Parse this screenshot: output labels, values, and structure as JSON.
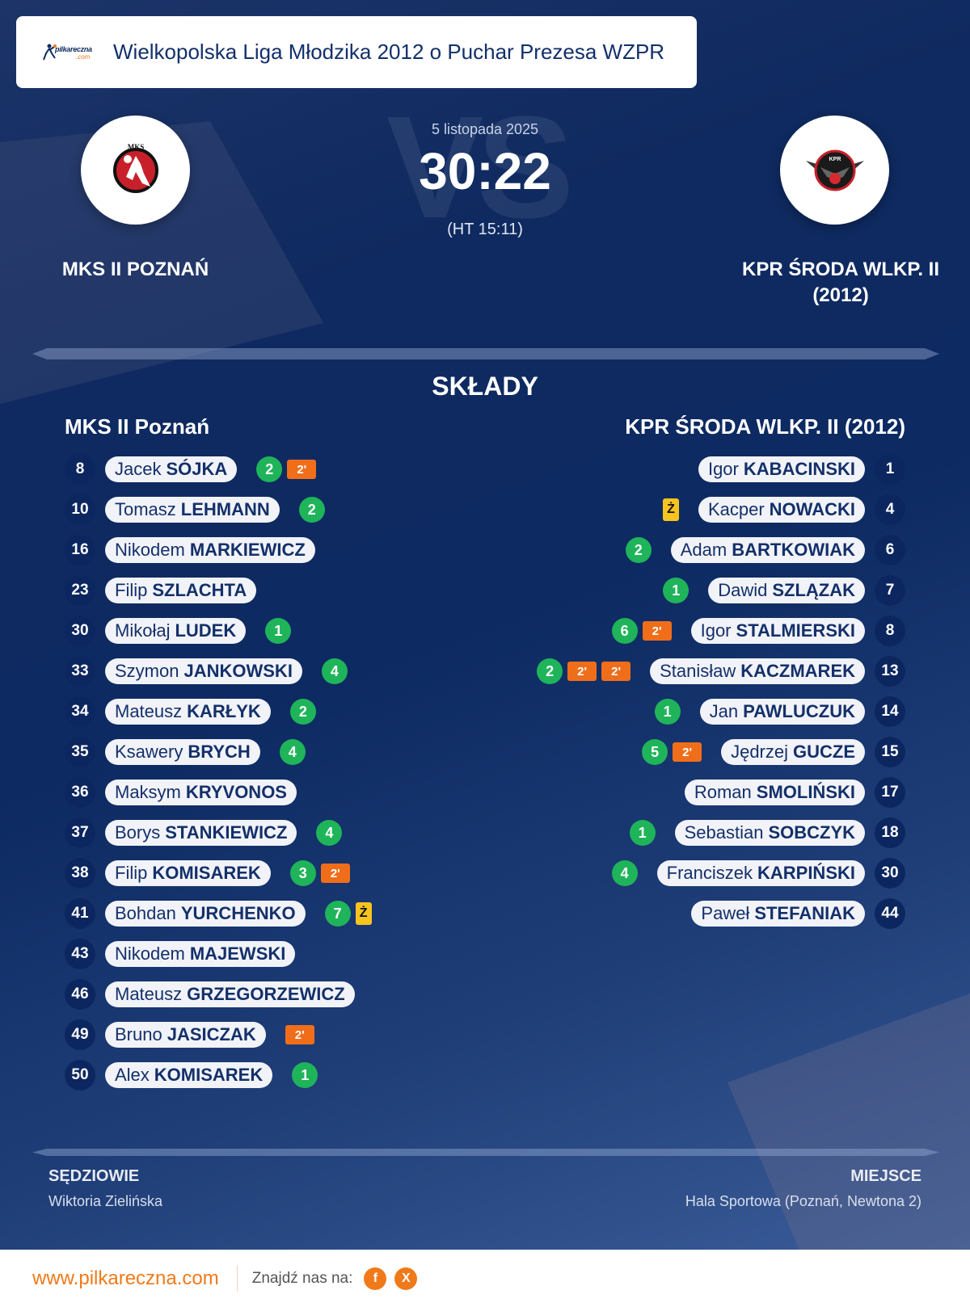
{
  "header": {
    "logo_brand": "pilkareczna",
    "logo_suffix": ".com",
    "title": "Wielkopolska Liga Młodzika 2012 o Puchar Prezesa WZPR"
  },
  "match": {
    "vs_watermark": "VS",
    "date": "5 listopada 2025",
    "score": "30:22",
    "halftime": "(HT 15:11)",
    "home_team": "MKS II POZNAŃ",
    "away_team_line1": "KPR ŚRODA WLKP. II",
    "away_team_line2": "(2012)"
  },
  "lineups": {
    "section_title": "SKŁADY",
    "home": {
      "title": "MKS II Poznań",
      "players": [
        {
          "number": "8",
          "first": "Jacek",
          "last": "SÓJKA",
          "goals": "2",
          "suspensions": [
            "2'"
          ],
          "yellow": null
        },
        {
          "number": "10",
          "first": "Tomasz",
          "last": "LEHMANN",
          "goals": "2",
          "suspensions": [],
          "yellow": null
        },
        {
          "number": "16",
          "first": "Nikodem",
          "last": "MARKIEWICZ",
          "goals": null,
          "suspensions": [],
          "yellow": null
        },
        {
          "number": "23",
          "first": "Filip",
          "last": "SZLACHTA",
          "goals": null,
          "suspensions": [],
          "yellow": null
        },
        {
          "number": "30",
          "first": "Mikołaj",
          "last": "LUDEK",
          "goals": "1",
          "suspensions": [],
          "yellow": null
        },
        {
          "number": "33",
          "first": "Szymon",
          "last": "JANKOWSKI",
          "goals": "4",
          "suspensions": [],
          "yellow": null
        },
        {
          "number": "34",
          "first": "Mateusz",
          "last": "KARŁYK",
          "goals": "2",
          "suspensions": [],
          "yellow": null
        },
        {
          "number": "35",
          "first": "Ksawery",
          "last": "BRYCH",
          "goals": "4",
          "suspensions": [],
          "yellow": null
        },
        {
          "number": "36",
          "first": "Maksym",
          "last": "KRYVONOS",
          "goals": null,
          "suspensions": [],
          "yellow": null
        },
        {
          "number": "37",
          "first": "Borys",
          "last": "STANKIEWICZ",
          "goals": "4",
          "suspensions": [],
          "yellow": null
        },
        {
          "number": "38",
          "first": "Filip",
          "last": "KOMISAREK",
          "goals": "3",
          "suspensions": [
            "2'"
          ],
          "yellow": null
        },
        {
          "number": "41",
          "first": "Bohdan",
          "last": "YURCHENKO",
          "goals": "7",
          "suspensions": [],
          "yellow": "Ż"
        },
        {
          "number": "43",
          "first": "Nikodem",
          "last": "MAJEWSKI",
          "goals": null,
          "suspensions": [],
          "yellow": null
        },
        {
          "number": "46",
          "first": "Mateusz",
          "last": "GRZEGORZEWICZ",
          "goals": null,
          "suspensions": [],
          "yellow": null
        },
        {
          "number": "49",
          "first": "Bruno",
          "last": "JASICZAK",
          "goals": null,
          "suspensions": [
            "2'"
          ],
          "yellow": null
        },
        {
          "number": "50",
          "first": "Alex",
          "last": "KOMISAREK",
          "goals": "1",
          "suspensions": [],
          "yellow": null
        }
      ]
    },
    "away": {
      "title": "KPR ŚRODA WLKP. II (2012)",
      "players": [
        {
          "number": "1",
          "first": "Igor",
          "last": "KABACINSKI",
          "goals": null,
          "suspensions": [],
          "yellow": null
        },
        {
          "number": "4",
          "first": "Kacper",
          "last": "NOWACKI",
          "goals": null,
          "suspensions": [],
          "yellow": "Ż"
        },
        {
          "number": "6",
          "first": "Adam",
          "last": "BARTKOWIAK",
          "goals": "2",
          "suspensions": [],
          "yellow": null
        },
        {
          "number": "7",
          "first": "Dawid",
          "last": "SZLĄZAK",
          "goals": "1",
          "suspensions": [],
          "yellow": null
        },
        {
          "number": "8",
          "first": "Igor",
          "last": "STALMIERSKI",
          "goals": "6",
          "suspensions": [
            "2'"
          ],
          "yellow": null
        },
        {
          "number": "13",
          "first": "Stanisław",
          "last": "KACZMAREK",
          "goals": "2",
          "suspensions": [
            "2'",
            "2'"
          ],
          "yellow": null
        },
        {
          "number": "14",
          "first": "Jan",
          "last": "PAWLUCZUK",
          "goals": "1",
          "suspensions": [],
          "yellow": null
        },
        {
          "number": "15",
          "first": "Jędrzej",
          "last": "GUCZE",
          "goals": "5",
          "suspensions": [
            "2'"
          ],
          "yellow": null
        },
        {
          "number": "17",
          "first": "Roman",
          "last": "SMOLIŃSKI",
          "goals": null,
          "suspensions": [],
          "yellow": null
        },
        {
          "number": "18",
          "first": "Sebastian",
          "last": "SOBCZYK",
          "goals": "1",
          "suspensions": [],
          "yellow": null
        },
        {
          "number": "30",
          "first": "Franciszek",
          "last": "KARPIŃSKI",
          "goals": "4",
          "suspensions": [],
          "yellow": null
        },
        {
          "number": "44",
          "first": "Paweł",
          "last": "STEFANIAK",
          "goals": null,
          "suspensions": [],
          "yellow": null
        }
      ]
    }
  },
  "officials": {
    "referees_label": "SĘDZIOWIE",
    "referees_value": "Wiktoria Zielińska",
    "venue_label": "MIEJSCE",
    "venue_value": "Hala Sportowa (Poznań, Newtona 2)"
  },
  "footer": {
    "url": "www.pilkareczna.com",
    "find_us": "Znajdź nas na:",
    "social": [
      {
        "name": "facebook",
        "glyph": "f"
      },
      {
        "name": "x",
        "glyph": "X"
      }
    ]
  },
  "colors": {
    "goal": "#1fb45a",
    "suspension": "#f06e1a",
    "yellow_card": "#f7c31f",
    "brand_orange": "#f07a1a",
    "navy": "#0c2660"
  }
}
